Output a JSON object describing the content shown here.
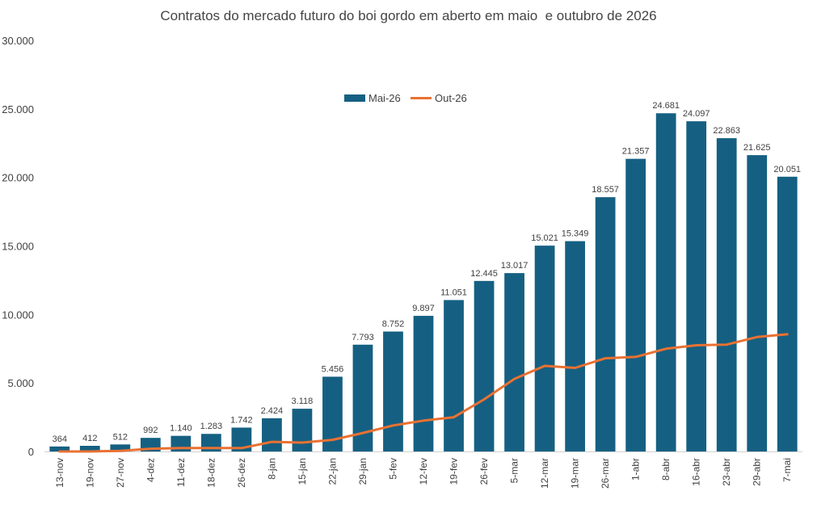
{
  "chart_data": {
    "type": "bar",
    "title": "Contratos do mercado futuro do boi gordo em aberto em maio  e outubro de 2026",
    "xlabel": "",
    "ylabel": "",
    "ylim": [
      0,
      30000
    ],
    "yticks": [
      "0",
      "5.000",
      "10.000",
      "15.000",
      "20.000",
      "25.000",
      "30.000"
    ],
    "ytick_values": [
      0,
      5000,
      10000,
      15000,
      20000,
      25000,
      30000
    ],
    "grid": false,
    "legend_position": "top-center",
    "categories": [
      "13-nov",
      "19-nov",
      "27-nov",
      "4-dez",
      "11-dez",
      "18-dez",
      "26-dez",
      "8-jan",
      "15-jan",
      "22-jan",
      "29-jan",
      "5-fev",
      "12-fev",
      "19-fev",
      "26-fev",
      "5-mar",
      "12-mar",
      "19-mar",
      "26-mar",
      "1-abr",
      "8-abr",
      "16-abr",
      "23-abr",
      "29-abr",
      "7-mai"
    ],
    "series": [
      {
        "name": "Mai-26",
        "type": "bar",
        "color": "#156082",
        "values": [
          364,
          412,
          512,
          992,
          1140,
          1283,
          1742,
          2424,
          3118,
          5456,
          7793,
          8752,
          9897,
          11051,
          12445,
          13017,
          15021,
          15349,
          18557,
          21357,
          24681,
          24097,
          22863,
          21625,
          20051
        ],
        "labels": [
          "364",
          "412",
          "512",
          "992",
          "1.140",
          "1.283",
          "1.742",
          "2.424",
          "3.118",
          "5.456",
          "7.793",
          "8.752",
          "9.897",
          "11.051",
          "12.445",
          "13.017",
          "15.021",
          "15.349",
          "18.557",
          "21.357",
          "24.681",
          "24.097",
          "22.863",
          "21.625",
          "20.051"
        ]
      },
      {
        "name": "Out-26",
        "type": "line",
        "color": "#E97132",
        "values": [
          0,
          0,
          50,
          200,
          250,
          250,
          250,
          700,
          650,
          850,
          1350,
          1900,
          2250,
          2500,
          3800,
          5300,
          6250,
          6100,
          6800,
          6900,
          7500,
          7750,
          7800,
          8350,
          8550
        ]
      }
    ]
  }
}
